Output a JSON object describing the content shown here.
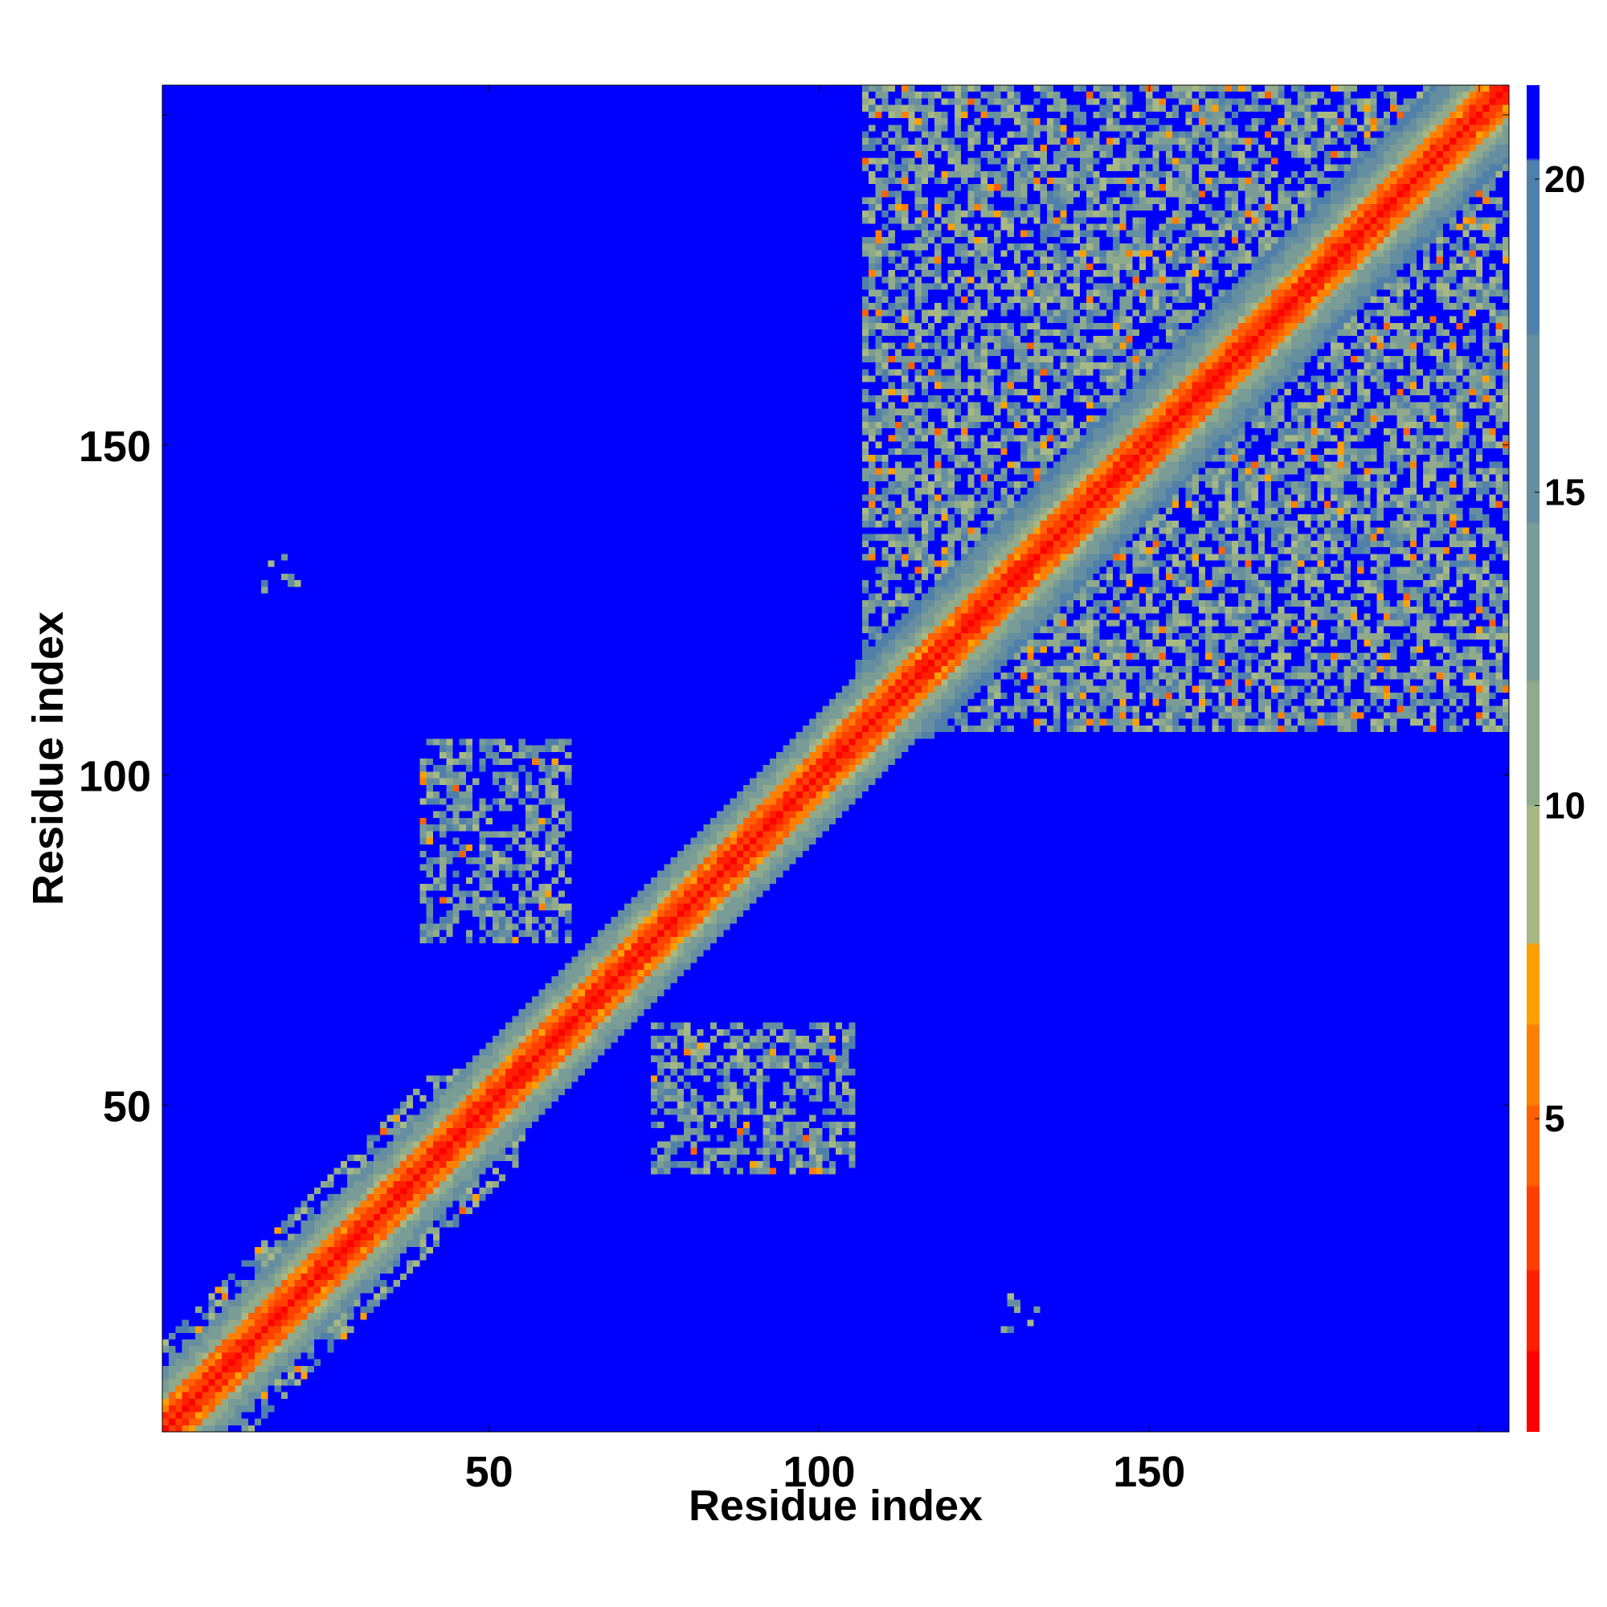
{
  "chart_data": {
    "type": "heatmap",
    "title": "",
    "xlabel": "Residue index",
    "ylabel": "Residue index",
    "xlim": [
      1,
      204
    ],
    "ylim": [
      1,
      204
    ],
    "x_ticks": [
      50,
      100,
      150,
      200
    ],
    "x_tick_labels": [
      "50",
      "100",
      "150",
      ""
    ],
    "y_ticks": [
      50,
      100,
      150,
      200
    ],
    "y_tick_labels": [
      "50",
      "100",
      "150",
      ""
    ],
    "colorbar": {
      "range": [
        0,
        21.5
      ],
      "ticks": [
        5,
        10,
        15,
        20
      ],
      "tick_labels": [
        "5",
        "10",
        "15",
        "20"
      ],
      "colors": [
        "#ff0000",
        "#ff2000",
        "#ff4000",
        "#ff6000",
        "#ff8000",
        "#ffa000",
        "#a7b884",
        "#90aa8c",
        "#7a9c96",
        "#658ea0",
        "#5080aa",
        "#0000ff"
      ],
      "levels": [
        0,
        1.3,
        2.6,
        3.9,
        5.2,
        6.5,
        7.8,
        10,
        12,
        14.5,
        17.5,
        20.3,
        21.5
      ]
    },
    "value_description": "distance-like matrix; low values (red) along diagonal, high values (blue) elsewhere",
    "contact_regions": [
      {
        "x": [
          1,
          55
        ],
        "y": [
          1,
          55
        ],
        "type": "near-diagonal"
      },
      {
        "x": [
          40,
          60
        ],
        "y": [
          80,
          104
        ],
        "type": "off-diagonal cluster"
      },
      {
        "x": [
          75,
          105
        ],
        "y": [
          40,
          62
        ],
        "type": "off-diagonal cluster"
      },
      {
        "x": [
          107,
          204
        ],
        "y": [
          107,
          204
        ],
        "type": "dense block"
      },
      {
        "x": [
          16,
          21
        ],
        "y": [
          128,
          132
        ],
        "type": "sparse dots"
      },
      {
        "x": [
          128,
          133
        ],
        "y": [
          16,
          21
        ],
        "type": "sparse dots"
      }
    ]
  }
}
